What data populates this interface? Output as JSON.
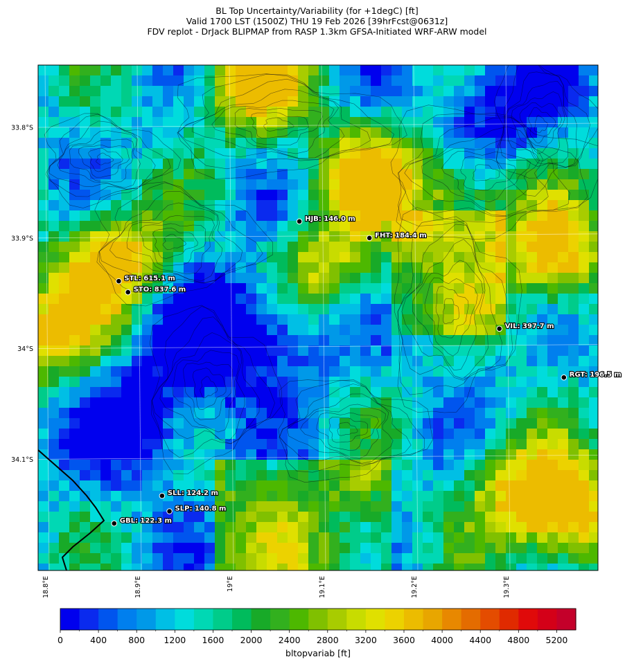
{
  "title": {
    "line1": "BL Top Uncertainty/Variability (for +1degC) [ft]",
    "line2": "Valid 1700 LST (1500Z) THU 19 Feb 2026 [39hrFcst@0631z]",
    "line3": "FDV replot - DrJack BLIPMAP from RASP 1.3km GFSA-Initiated WRF-ARW model"
  },
  "map": {
    "lat_labels": [
      "33.8°S",
      "33.9°S",
      "34°S",
      "34.1°S"
    ],
    "lon_labels": [
      "18.8°E",
      "18.9°E",
      "19°E",
      "19.1°E",
      "19.2°E",
      "19.3°E"
    ],
    "stations": [
      {
        "code": "HJB",
        "label": "HJB: 146.0 m",
        "lon": 19.076,
        "lat": 33.885
      },
      {
        "code": "FHT",
        "label": "FHT: 184.4 m",
        "lon": 19.152,
        "lat": 33.9
      },
      {
        "code": "STL",
        "label": "STL: 615.1 m",
        "lon": 18.88,
        "lat": 33.939
      },
      {
        "code": "STO",
        "label": "STO: 837.6 m",
        "lon": 18.89,
        "lat": 33.949
      },
      {
        "code": "VIL",
        "label": "VIL: 397.7 m",
        "lon": 19.293,
        "lat": 33.982
      },
      {
        "code": "RGT",
        "label": "RGT: 196.5 m",
        "lon": 19.363,
        "lat": 34.026
      },
      {
        "code": "SLL",
        "label": "SLL: 124.2 m",
        "lon": 18.927,
        "lat": 34.133
      },
      {
        "code": "SLP",
        "label": "SLP: 140.8 m",
        "lon": 18.935,
        "lat": 34.147
      },
      {
        "code": "GBL",
        "label": "GBL: 122.3 m",
        "lon": 18.875,
        "lat": 34.158
      }
    ],
    "field_description_colors": {
      "low": "#0a14e6",
      "mid": "#00d4e0",
      "high": "#e8d800"
    }
  },
  "colorbar": {
    "ticks": [
      "0",
      "400",
      "800",
      "1200",
      "1600",
      "2000",
      "2400",
      "2800",
      "3200",
      "3600",
      "4000",
      "4400",
      "4800",
      "5200"
    ],
    "label": "bltopvariab [ft]",
    "min": 0,
    "max": 5400,
    "step": 200,
    "colors": [
      "#0000ee",
      "#0a2aee",
      "#0055ee",
      "#007fee",
      "#0099e8",
      "#00bfe5",
      "#00dcdc",
      "#00d8b4",
      "#00cc8a",
      "#00bb5c",
      "#18aa28",
      "#32b01e",
      "#4db800",
      "#80c000",
      "#a8cc00",
      "#c8dc00",
      "#e0e000",
      "#ecd200",
      "#ecbc00",
      "#e8a600",
      "#e88800",
      "#e46c00",
      "#e44c00",
      "#e02a00",
      "#e00a0a",
      "#d40018",
      "#c4002a"
    ]
  }
}
